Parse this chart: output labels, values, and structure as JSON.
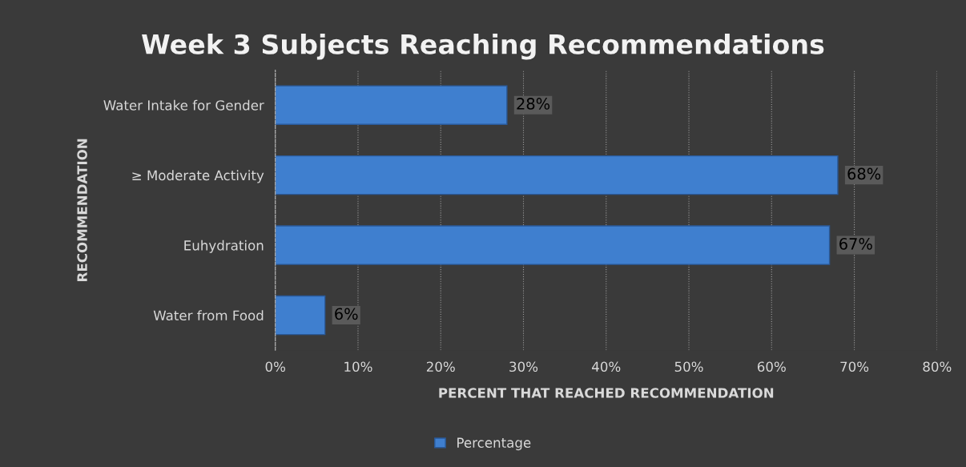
{
  "chart_data": {
    "type": "bar",
    "orientation": "horizontal",
    "title": "Week 3 Subjects Reaching Recommendations",
    "xlabel": "PERCENT THAT REACHED RECOMMENDATION",
    "ylabel": "RECOMMENDATION",
    "categories": [
      "Water Intake for Gender",
      "≥ Moderate Activity",
      "Euhydration",
      "Water from Food"
    ],
    "series": [
      {
        "name": "Percentage",
        "color": "#3f7fcf",
        "values": [
          28,
          68,
          67,
          6
        ],
        "value_labels": [
          "28%",
          "68%",
          "67%",
          "6%"
        ]
      }
    ],
    "xlim": [
      0,
      80
    ],
    "xticks": [
      {
        "value": 0,
        "label": "0%"
      },
      {
        "value": 10,
        "label": "10%"
      },
      {
        "value": 20,
        "label": "20%"
      },
      {
        "value": 30,
        "label": "30%"
      },
      {
        "value": 40,
        "label": "40%"
      },
      {
        "value": 50,
        "label": "50%"
      },
      {
        "value": 60,
        "label": "60%"
      },
      {
        "value": 70,
        "label": "70%"
      },
      {
        "value": 80,
        "label": "80%"
      }
    ],
    "grid": "x",
    "legend": "bottom"
  }
}
